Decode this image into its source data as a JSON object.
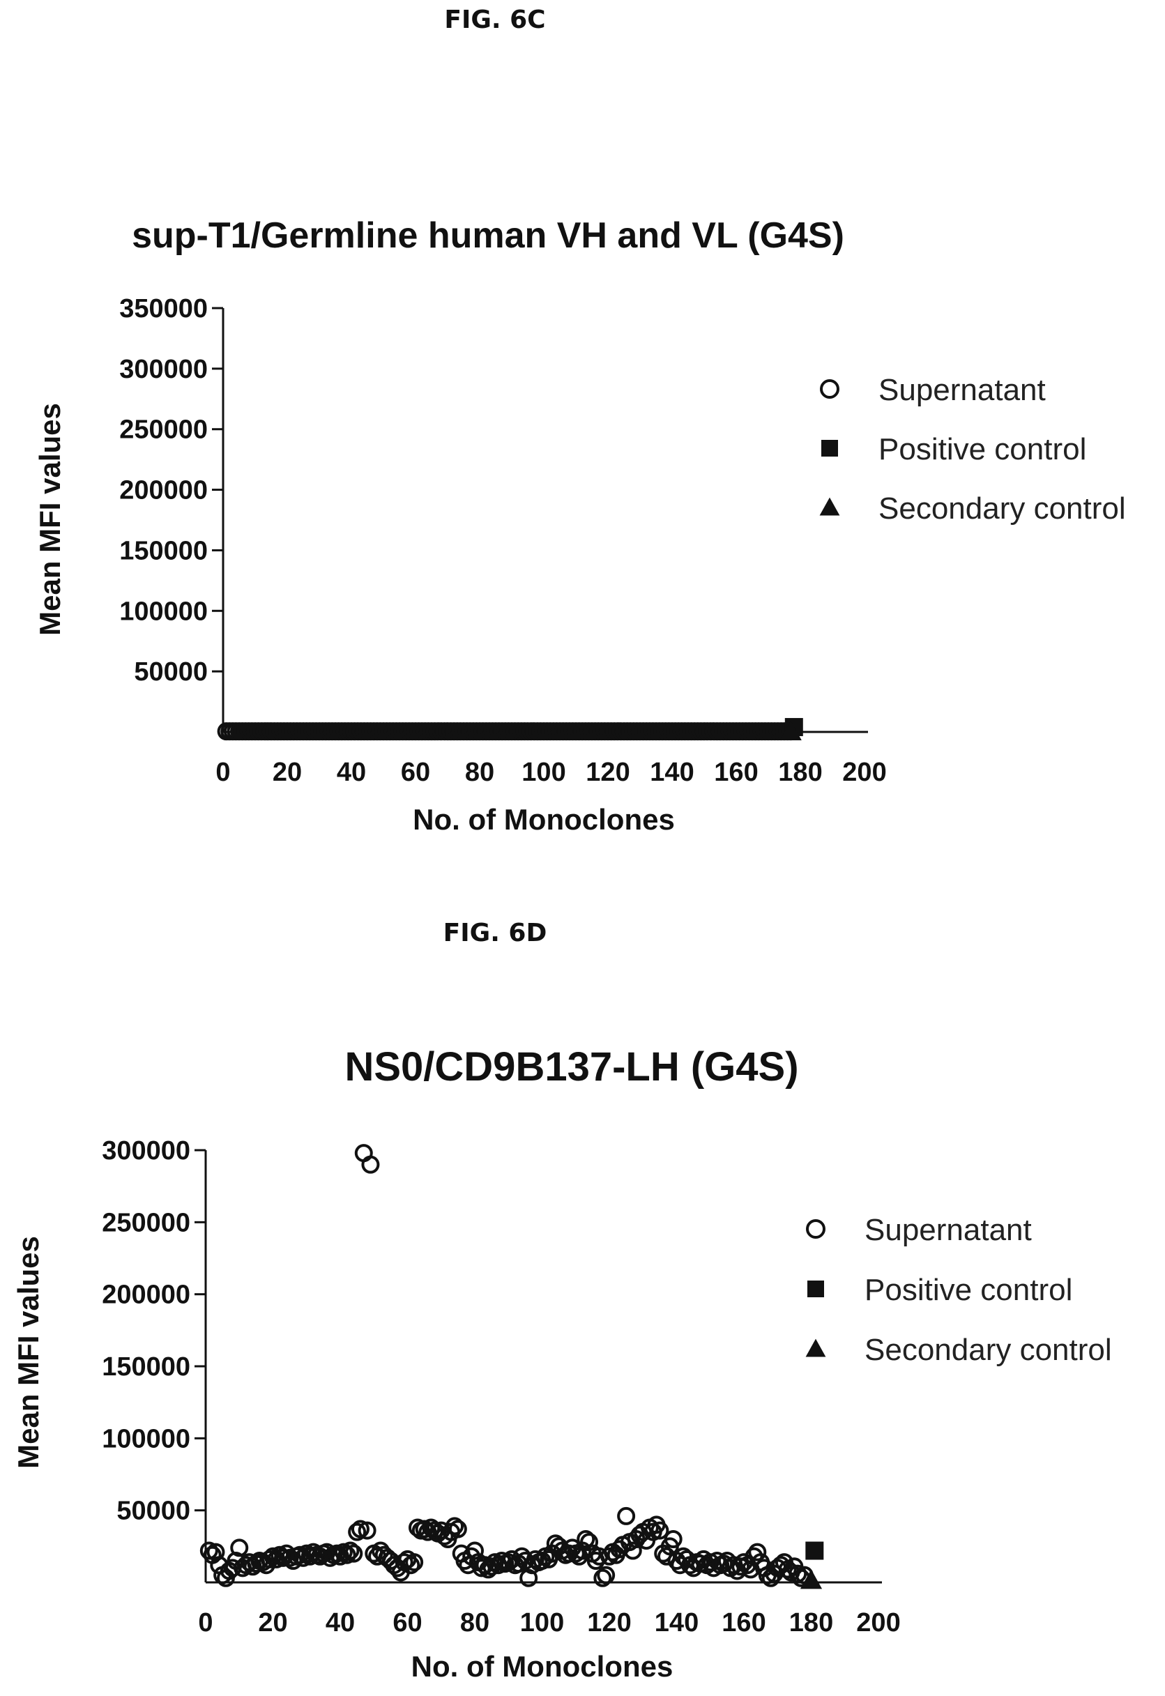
{
  "figures": [
    {
      "label": "FIG. 6C"
    },
    {
      "label": "FIG. 6D"
    }
  ],
  "legend": {
    "entries": [
      {
        "name": "Supernatant",
        "marker": "open-circle"
      },
      {
        "name": "Positive control",
        "marker": "filled-square"
      },
      {
        "name": "Secondary control",
        "marker": "filled-triangle"
      }
    ]
  },
  "chart_data": [
    {
      "type": "scatter",
      "title": "sup-T1/Germline human VH and VL (G4S)",
      "xlabel": "No. of Monoclones",
      "ylabel": "Mean MFI values",
      "xlim": [
        0,
        200
      ],
      "ylim": [
        0,
        350000
      ],
      "xticks": [
        "0",
        "20",
        "40",
        "60",
        "80",
        "100",
        "120",
        "140",
        "160",
        "180",
        "200"
      ],
      "yticks": [
        "50000",
        "100000",
        "150000",
        "200000",
        "250000",
        "300000",
        "350000"
      ],
      "ytick_values": [
        50000,
        100000,
        150000,
        200000,
        250000,
        300000,
        350000
      ],
      "legend_position": "right",
      "series": [
        {
          "name": "Supernatant",
          "x_range": [
            1,
            177
          ],
          "y_constant": 500
        },
        {
          "name": "Positive control",
          "points": [
            [
              178,
              4000
            ]
          ]
        },
        {
          "name": "Secondary control",
          "points": [
            [
              177,
              300
            ]
          ]
        }
      ]
    },
    {
      "type": "scatter",
      "title": "NS0/CD9B137-LH (G4S)",
      "xlabel": "No. of Monoclones",
      "ylabel": "Mean MFI values",
      "xlim": [
        0,
        200
      ],
      "ylim": [
        0,
        300000
      ],
      "xticks": [
        "0",
        "20",
        "40",
        "60",
        "80",
        "100",
        "120",
        "140",
        "160",
        "180",
        "200"
      ],
      "yticks": [
        "50000",
        "100000",
        "150000",
        "200000",
        "250000",
        "300000"
      ],
      "ytick_values": [
        50000,
        100000,
        150000,
        200000,
        250000,
        300000
      ],
      "legend_position": "right",
      "series": [
        {
          "name": "Supernatant",
          "points": [
            [
              1,
              22000
            ],
            [
              2,
              19000
            ],
            [
              3,
              21000
            ],
            [
              4,
              12000
            ],
            [
              5,
              5000
            ],
            [
              6,
              3000
            ],
            [
              7,
              8000
            ],
            [
              8,
              10000
            ],
            [
              9,
              15000
            ],
            [
              10,
              24000
            ],
            [
              11,
              10000
            ],
            [
              12,
              12000
            ],
            [
              13,
              14000
            ],
            [
              14,
              11000
            ],
            [
              15,
              13000
            ],
            [
              16,
              15000
            ],
            [
              17,
              14000
            ],
            [
              18,
              12000
            ],
            [
              19,
              16000
            ],
            [
              20,
              18000
            ],
            [
              21,
              16000
            ],
            [
              22,
              19000
            ],
            [
              23,
              17000
            ],
            [
              24,
              20000
            ],
            [
              25,
              17000
            ],
            [
              26,
              15000
            ],
            [
              27,
              18000
            ],
            [
              28,
              19000
            ],
            [
              29,
              17000
            ],
            [
              30,
              20000
            ],
            [
              31,
              18000
            ],
            [
              32,
              21000
            ],
            [
              33,
              19000
            ],
            [
              34,
              18000
            ],
            [
              35,
              20000
            ],
            [
              36,
              21000
            ],
            [
              37,
              17000
            ],
            [
              38,
              19000
            ],
            [
              39,
              20000
            ],
            [
              40,
              18000
            ],
            [
              41,
              21000
            ],
            [
              42,
              19000
            ],
            [
              43,
              22000
            ],
            [
              44,
              20000
            ],
            [
              45,
              35000
            ],
            [
              46,
              37000
            ],
            [
              47,
              298000
            ],
            [
              48,
              36000
            ],
            [
              49,
              290000
            ],
            [
              50,
              20000
            ],
            [
              51,
              18000
            ],
            [
              52,
              22000
            ],
            [
              53,
              19000
            ],
            [
              54,
              17000
            ],
            [
              55,
              15000
            ],
            [
              56,
              12000
            ],
            [
              57,
              10000
            ],
            [
              58,
              7000
            ],
            [
              59,
              14000
            ],
            [
              60,
              16000
            ],
            [
              61,
              12000
            ],
            [
              62,
              14000
            ],
            [
              63,
              38000
            ],
            [
              64,
              36000
            ],
            [
              65,
              37000
            ],
            [
              66,
              35000
            ],
            [
              67,
              38000
            ],
            [
              68,
              36000
            ],
            [
              69,
              34000
            ],
            [
              70,
              36000
            ],
            [
              71,
              32000
            ],
            [
              72,
              30000
            ],
            [
              73,
              35000
            ],
            [
              74,
              39000
            ],
            [
              75,
              37000
            ],
            [
              76,
              20000
            ],
            [
              77,
              15000
            ],
            [
              78,
              12000
            ],
            [
              79,
              18000
            ],
            [
              80,
              22000
            ],
            [
              81,
              14000
            ],
            [
              82,
              10000
            ],
            [
              83,
              12000
            ],
            [
              84,
              9000
            ],
            [
              85,
              11000
            ],
            [
              86,
              14000
            ],
            [
              87,
              12000
            ],
            [
              88,
              15000
            ],
            [
              89,
              13000
            ],
            [
              90,
              14000
            ],
            [
              91,
              16000
            ],
            [
              92,
              12000
            ],
            [
              93,
              13000
            ],
            [
              94,
              18000
            ],
            [
              95,
              15000
            ],
            [
              96,
              3000
            ],
            [
              97,
              12000
            ],
            [
              98,
              16000
            ],
            [
              99,
              14000
            ],
            [
              100,
              15000
            ],
            [
              101,
              18000
            ],
            [
              102,
              16000
            ],
            [
              103,
              20000
            ],
            [
              104,
              27000
            ],
            [
              105,
              25000
            ],
            [
              106,
              22000
            ],
            [
              107,
              19000
            ],
            [
              108,
              20000
            ],
            [
              109,
              24000
            ],
            [
              110,
              20000
            ],
            [
              111,
              18000
            ],
            [
              112,
              22000
            ],
            [
              113,
              30000
            ],
            [
              114,
              28000
            ],
            [
              115,
              20000
            ],
            [
              116,
              15000
            ],
            [
              117,
              18000
            ],
            [
              118,
              3000
            ],
            [
              119,
              5000
            ],
            [
              120,
              18000
            ],
            [
              121,
              21000
            ],
            [
              122,
              19000
            ],
            [
              123,
              23000
            ],
            [
              124,
              26000
            ],
            [
              125,
              46000
            ],
            [
              126,
              28000
            ],
            [
              127,
              22000
            ],
            [
              128,
              30000
            ],
            [
              129,
              33000
            ],
            [
              130,
              35000
            ],
            [
              131,
              29000
            ],
            [
              132,
              38000
            ],
            [
              133,
              35000
            ],
            [
              134,
              40000
            ],
            [
              135,
              36000
            ],
            [
              136,
              20000
            ],
            [
              137,
              18000
            ],
            [
              138,
              25000
            ],
            [
              139,
              30000
            ],
            [
              140,
              15000
            ],
            [
              141,
              12000
            ],
            [
              142,
              18000
            ],
            [
              143,
              16000
            ],
            [
              144,
              12000
            ],
            [
              145,
              10000
            ],
            [
              146,
              14000
            ],
            [
              147,
              13000
            ],
            [
              148,
              16000
            ],
            [
              149,
              12000
            ],
            [
              150,
              14000
            ],
            [
              151,
              10000
            ],
            [
              152,
              15000
            ],
            [
              153,
              12000
            ],
            [
              154,
              13000
            ],
            [
              155,
              15000
            ],
            [
              156,
              10000
            ],
            [
              157,
              12000
            ],
            [
              158,
              8000
            ],
            [
              159,
              11000
            ],
            [
              160,
              14000
            ],
            [
              161,
              12000
            ],
            [
              162,
              9000
            ],
            [
              163,
              18000
            ],
            [
              164,
              21000
            ],
            [
              165,
              14000
            ],
            [
              166,
              10000
            ],
            [
              167,
              5000
            ],
            [
              168,
              3000
            ],
            [
              169,
              6000
            ],
            [
              170,
              10000
            ],
            [
              171,
              12000
            ],
            [
              172,
              14000
            ],
            [
              173,
              9000
            ],
            [
              174,
              7000
            ],
            [
              175,
              11000
            ],
            [
              176,
              6000
            ],
            [
              177,
              3000
            ],
            [
              178,
              5000
            ]
          ]
        },
        {
          "name": "Positive control",
          "points": [
            [
              181,
              22000
            ]
          ]
        },
        {
          "name": "Secondary control",
          "points": [
            [
              180,
              1500
            ]
          ]
        }
      ]
    }
  ]
}
